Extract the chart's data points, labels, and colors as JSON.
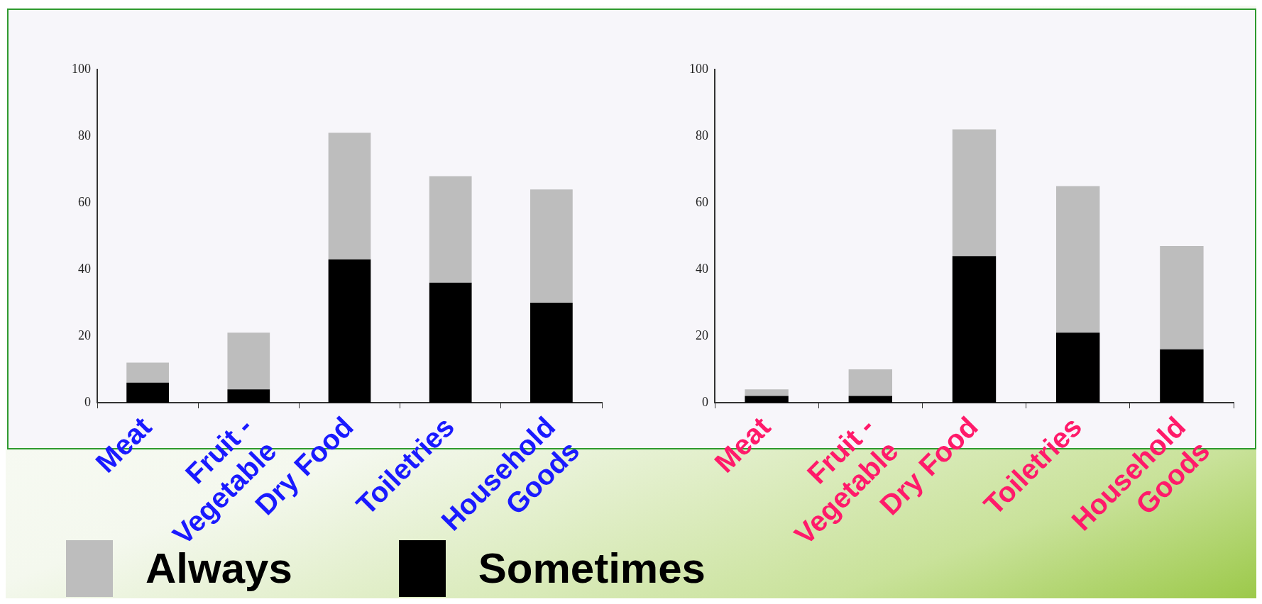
{
  "chart_data": [
    {
      "type": "bar",
      "stacked": true,
      "categories": [
        "Meat",
        "Fruit - Vegetable",
        "Dry Food",
        "Toiletries",
        "Household Goods"
      ],
      "legend": "bottom",
      "ylim": [
        0,
        100
      ],
      "yticks": [
        0,
        20,
        40,
        60,
        80,
        100
      ],
      "series": [
        {
          "name": "Sometimes",
          "color": "#000000",
          "values": [
            6,
            4,
            43,
            36,
            30
          ]
        },
        {
          "name": "Always",
          "color": "#bdbdbd",
          "values": [
            6,
            17,
            38,
            32,
            34
          ]
        }
      ]
    },
    {
      "type": "bar",
      "stacked": true,
      "categories": [
        "Meat",
        "Fruit - Vegetable",
        "Dry Food",
        "Toiletries",
        "Household Goods"
      ],
      "ylim": [
        0,
        100
      ],
      "yticks": [
        0,
        20,
        40,
        60,
        80,
        100
      ],
      "series": [
        {
          "color": "#000000",
          "values": [
            2,
            2,
            44,
            21,
            16
          ]
        },
        {
          "color": "#bdbdbd",
          "values": [
            2,
            8,
            38,
            44,
            31
          ]
        }
      ]
    }
  ]
}
